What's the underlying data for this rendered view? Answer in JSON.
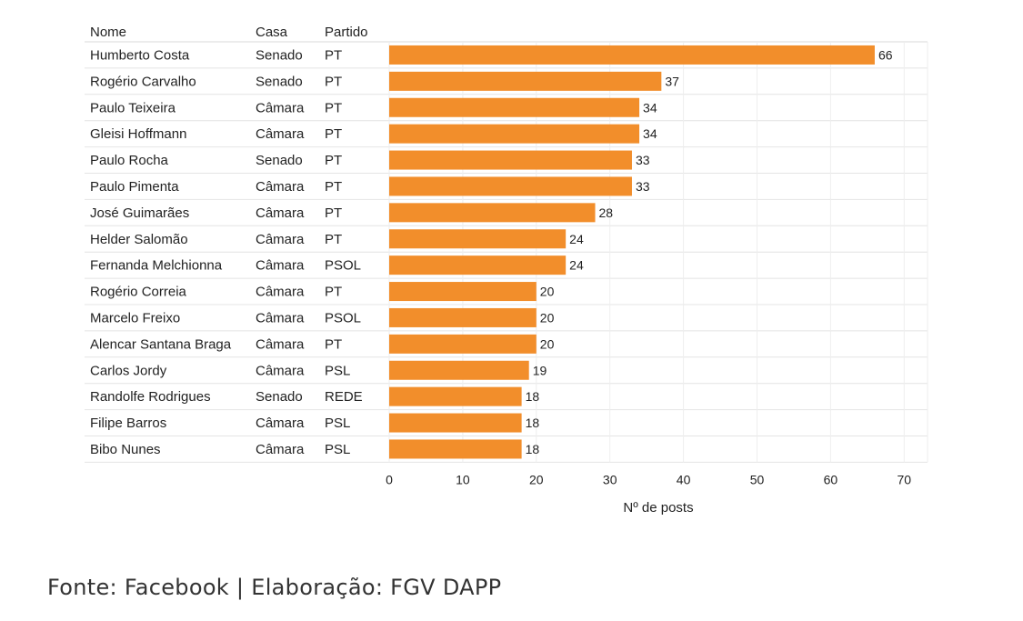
{
  "table": {
    "headers": [
      "Nome",
      "Casa",
      "Partido"
    ]
  },
  "chart_data": {
    "type": "bar",
    "orientation": "horizontal",
    "categories": [
      "Humberto Costa",
      "Rogério Carvalho",
      "Paulo Teixeira",
      "Gleisi Hoffmann",
      "Paulo Rocha",
      "Paulo Pimenta",
      "José Guimarães",
      "Helder Salomão",
      "Fernanda Melchionna",
      "Rogério Correia",
      "Marcelo Freixo",
      "Alencar Santana Braga",
      "Carlos Jordy",
      "Randolfe Rodrigues",
      "Filipe Barros",
      "Bibo Nunes"
    ],
    "casa": [
      "Senado",
      "Senado",
      "Câmara",
      "Câmara",
      "Senado",
      "Câmara",
      "Câmara",
      "Câmara",
      "Câmara",
      "Câmara",
      "Câmara",
      "Câmara",
      "Câmara",
      "Senado",
      "Câmara",
      "Câmara"
    ],
    "partido": [
      "PT",
      "PT",
      "PT",
      "PT",
      "PT",
      "PT",
      "PT",
      "PT",
      "PSOL",
      "PT",
      "PSOL",
      "PT",
      "PSL",
      "REDE",
      "PSL",
      "PSL"
    ],
    "values": [
      66,
      37,
      34,
      34,
      33,
      33,
      28,
      24,
      24,
      20,
      20,
      20,
      19,
      18,
      18,
      18
    ],
    "xlabel": "Nº de posts",
    "xlim": [
      0,
      73
    ],
    "xticks": [
      0,
      10,
      20,
      30,
      40,
      50,
      60,
      70
    ],
    "bar_color": "#F28E2B",
    "grid": true
  },
  "source": "Fonte: Facebook | Elaboração: FGV DAPP"
}
